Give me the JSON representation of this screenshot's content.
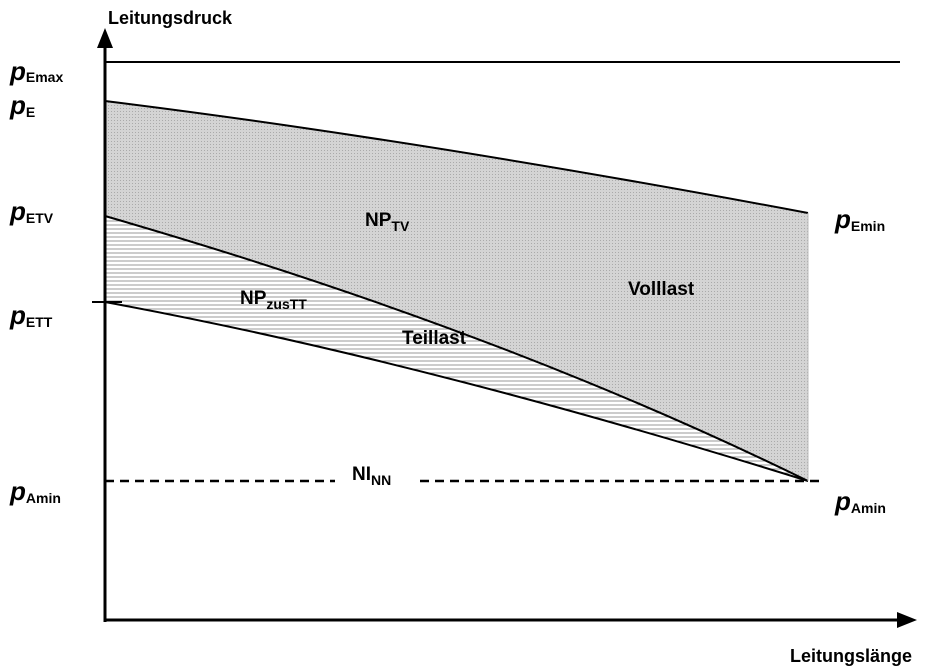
{
  "axes": {
    "y_label": "Leitungsdruck",
    "x_label": "Leitungslänge"
  },
  "left_labels": [
    {
      "main": "p",
      "sub": "Emax"
    },
    {
      "main": "p",
      "sub": "E"
    },
    {
      "main": "p",
      "sub": "ETV"
    },
    {
      "main": "p",
      "sub": "ETT"
    },
    {
      "main": "p",
      "sub": "Amin"
    }
  ],
  "right_labels": [
    {
      "main": "p",
      "sub": "Emin"
    },
    {
      "main": "p",
      "sub": "Amin"
    }
  ],
  "regions": [
    {
      "main": "NP",
      "sub": "TV"
    },
    {
      "main": "NP",
      "sub": "zusTT"
    },
    {
      "main": "NI",
      "sub": "NN"
    }
  ],
  "loads": [
    "Volllast",
    "Teillast"
  ]
}
